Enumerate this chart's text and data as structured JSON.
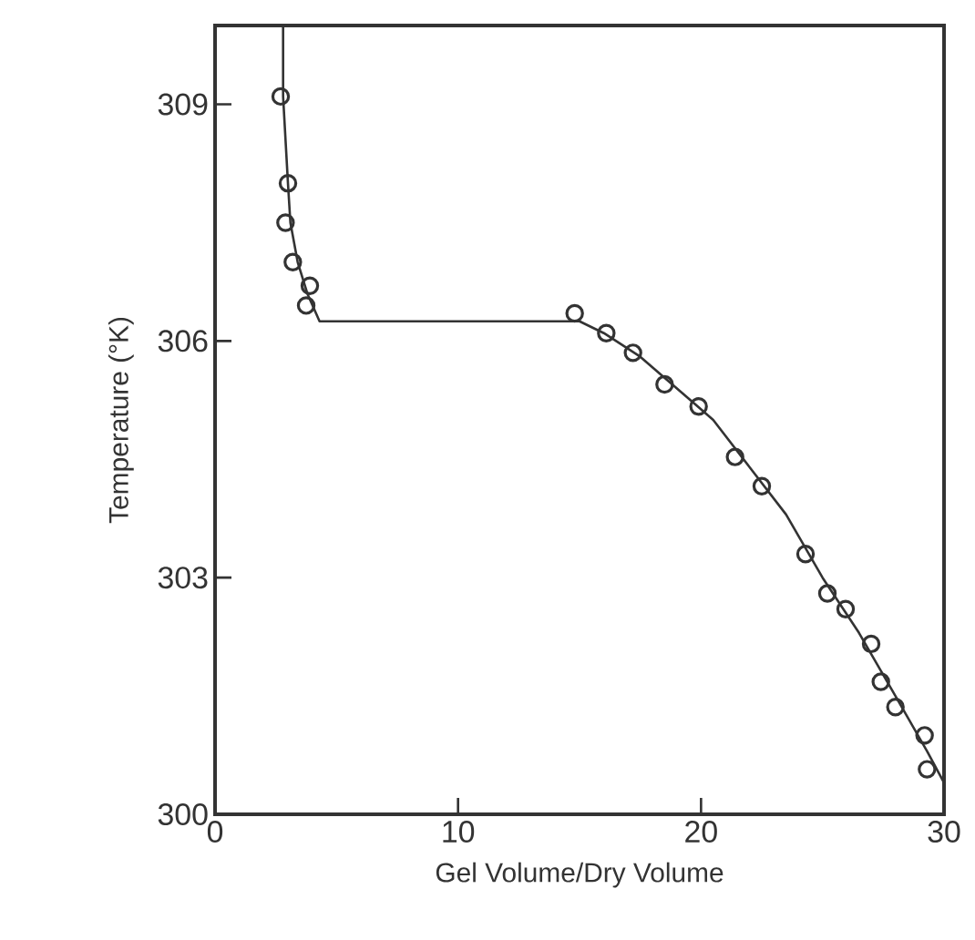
{
  "chart_data": {
    "type": "scatter",
    "xlabel": "Gel Volume/Dry Volume",
    "ylabel": "Temperature (°K)",
    "xlim": [
      0,
      30
    ],
    "ylim": [
      300,
      310
    ],
    "xticks": [
      0,
      10,
      20,
      30
    ],
    "yticks": [
      300,
      303,
      306,
      309
    ],
    "series": [
      {
        "marker": "circle",
        "color": "#333333",
        "x": [
          2.7,
          3.0,
          2.9,
          3.2,
          3.9,
          3.75,
          14.8,
          16.1,
          17.2,
          18.5,
          19.9,
          21.4,
          22.5,
          24.3,
          25.2,
          25.95,
          27.0,
          27.4,
          28.0,
          29.2,
          29.3
        ],
        "values": [
          309.1,
          308.0,
          307.5,
          307.0,
          306.7,
          306.45,
          306.35,
          306.1,
          305.85,
          305.45,
          305.17,
          304.53,
          304.16,
          303.3,
          302.8,
          302.6,
          302.16,
          301.68,
          301.36,
          301.0,
          300.57
        ]
      },
      {
        "type": "line",
        "color": "#333333",
        "line_style": "solid",
        "x": [
          2.8,
          2.8,
          3.0,
          3.1,
          3.4,
          3.8,
          4.3,
          15,
          16,
          17.5,
          19,
          20.5,
          22,
          23.5,
          25,
          26.5,
          28,
          29.3,
          30
        ],
        "values": [
          310,
          309.1,
          308,
          307.5,
          307,
          306.6,
          306.25,
          306.25,
          306.1,
          305.8,
          305.4,
          305.0,
          304.4,
          303.8,
          303.0,
          302.3,
          301.5,
          300.8,
          300.4
        ]
      }
    ]
  }
}
